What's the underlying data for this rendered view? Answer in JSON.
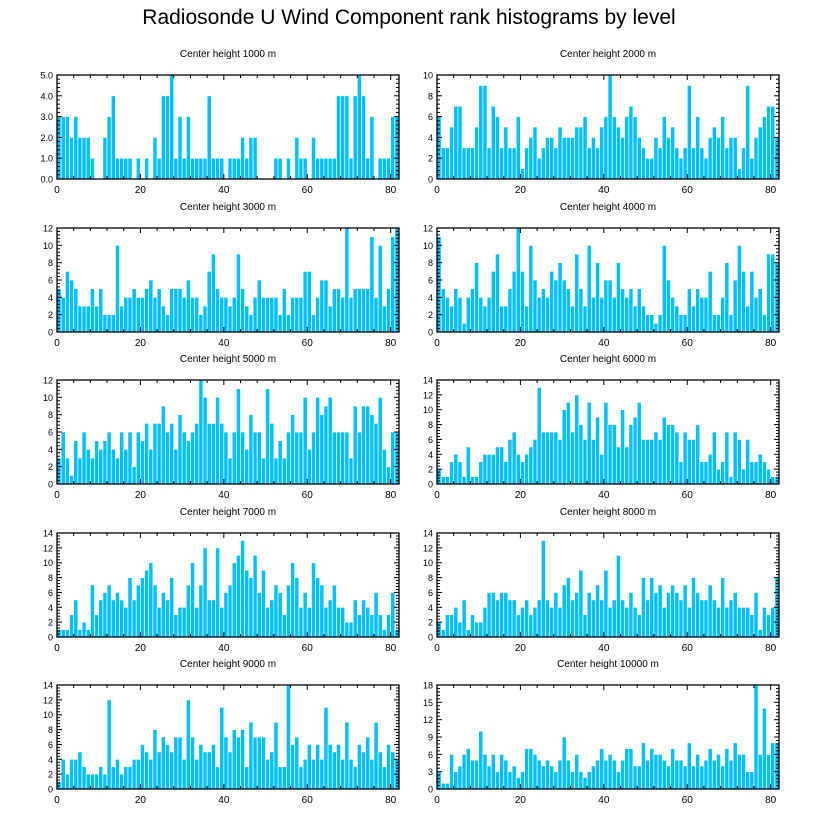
{
  "title": "Radiosonde U Wind Component rank histograms by level",
  "bar_color": "#00BFFF",
  "frame_color": "#000000",
  "chart_data": [
    {
      "type": "bar",
      "title": "Center height 1000 m",
      "xlim": [
        0,
        82
      ],
      "xticks": [
        0,
        20,
        40,
        60,
        80
      ],
      "ylim": [
        0,
        5
      ],
      "yticks": [
        0,
        1,
        2,
        3,
        4,
        5
      ],
      "ytick_labels": [
        "0.0",
        "1.0",
        "2.0",
        "3.0",
        "4.0",
        "5.0"
      ],
      "values": [
        3,
        3,
        3,
        2,
        3,
        2,
        2,
        2,
        1,
        0,
        0,
        2,
        3,
        4,
        1,
        1,
        1,
        1,
        0,
        1,
        0,
        1,
        0,
        2,
        1,
        4,
        4,
        5,
        1,
        3,
        1,
        3,
        1,
        1,
        1,
        1,
        4,
        1,
        1,
        1,
        0,
        1,
        1,
        1,
        2,
        1,
        2,
        2,
        0,
        0,
        0,
        0,
        1,
        1,
        0,
        1,
        0,
        2,
        1,
        1,
        0,
        2,
        1,
        1,
        1,
        1,
        1,
        4,
        4,
        4,
        1,
        4,
        5,
        4,
        1,
        3,
        0,
        1,
        1,
        1,
        3,
        3
      ]
    },
    {
      "type": "bar",
      "title": "Center height 2000 m",
      "xlim": [
        0,
        82
      ],
      "xticks": [
        0,
        20,
        40,
        60,
        80
      ],
      "ylim": [
        0,
        10
      ],
      "yticks": [
        0,
        2,
        4,
        6,
        8,
        10
      ],
      "ytick_labels": [
        "0",
        "2",
        "4",
        "6",
        "8",
        "10"
      ],
      "values": [
        6,
        3,
        3,
        5,
        7,
        7,
        3,
        3,
        3,
        5,
        9,
        9,
        3,
        7,
        6,
        3,
        5,
        3,
        3,
        6,
        1,
        3,
        4,
        5,
        2,
        3,
        4,
        4,
        3,
        5,
        4,
        4,
        4,
        5,
        5,
        6,
        3,
        4,
        3,
        5,
        6,
        10,
        6,
        5,
        4,
        6,
        7,
        6,
        4,
        3,
        2,
        2,
        4,
        3,
        6,
        4,
        5,
        3,
        2,
        3,
        9,
        3,
        6,
        3,
        2,
        4,
        5,
        4,
        6,
        3,
        4,
        4,
        1,
        3,
        9,
        2,
        4,
        5,
        6,
        7,
        7,
        4
      ]
    },
    {
      "type": "bar",
      "title": "Center height 3000 m",
      "xlim": [
        0,
        82
      ],
      "xticks": [
        0,
        20,
        40,
        60,
        80
      ],
      "ylim": [
        0,
        12
      ],
      "yticks": [
        0,
        2,
        4,
        6,
        8,
        10,
        12
      ],
      "ytick_labels": [
        "0",
        "2",
        "4",
        "6",
        "8",
        "10",
        "12"
      ],
      "values": [
        5,
        4,
        7,
        6,
        5,
        3,
        3,
        3,
        5,
        3,
        5,
        2,
        2,
        2,
        10,
        3,
        4,
        4,
        5,
        4,
        4,
        5,
        6,
        4,
        5,
        3,
        2,
        5,
        5,
        5,
        4,
        6,
        4,
        4,
        2,
        3,
        7,
        9,
        5,
        4,
        4,
        3,
        4,
        9,
        5,
        3,
        2,
        4,
        6,
        4,
        4,
        4,
        4,
        2,
        5,
        2,
        4,
        4,
        4,
        7,
        7,
        2,
        4,
        6,
        6,
        3,
        5,
        5,
        4,
        12,
        4,
        5,
        5,
        5,
        5,
        11,
        4,
        10,
        3,
        5,
        11,
        12
      ]
    },
    {
      "type": "bar",
      "title": "Center height 4000 m",
      "xlim": [
        0,
        82
      ],
      "xticks": [
        0,
        20,
        40,
        60,
        80
      ],
      "ylim": [
        0,
        12
      ],
      "yticks": [
        0,
        2,
        4,
        6,
        8,
        10,
        12
      ],
      "ytick_labels": [
        "0",
        "2",
        "4",
        "6",
        "8",
        "10",
        "12"
      ],
      "values": [
        11,
        5,
        4,
        3,
        5,
        4,
        1,
        4,
        5,
        8,
        4,
        3,
        4,
        7,
        9,
        3,
        3,
        5,
        7,
        12,
        7,
        3,
        10,
        6,
        4,
        5,
        4,
        7,
        6,
        8,
        6,
        5,
        3,
        9,
        5,
        3,
        10,
        4,
        8,
        4,
        6,
        6,
        4,
        8,
        5,
        4,
        5,
        3,
        5,
        3,
        2,
        2,
        1,
        2,
        10,
        6,
        4,
        3,
        2,
        2,
        5,
        3,
        5,
        4,
        4,
        7,
        2,
        2,
        4,
        8,
        2,
        6,
        10,
        7,
        3,
        7,
        4,
        5,
        2,
        9,
        9,
        8
      ]
    },
    {
      "type": "bar",
      "title": "Center height 5000 m",
      "xlim": [
        0,
        82
      ],
      "xticks": [
        0,
        20,
        40,
        60,
        80
      ],
      "ylim": [
        0,
        12
      ],
      "yticks": [
        0,
        2,
        4,
        6,
        8,
        10,
        12
      ],
      "ytick_labels": [
        "0",
        "2",
        "4",
        "6",
        "8",
        "10",
        "12"
      ],
      "values": [
        3,
        6,
        3,
        1,
        5,
        3,
        6,
        4,
        3,
        5,
        4,
        5,
        6,
        4,
        3,
        6,
        4,
        6,
        2,
        6,
        5,
        7,
        4,
        7,
        7,
        9,
        6,
        7,
        4,
        8,
        6,
        5,
        6,
        7,
        12,
        10,
        7,
        7,
        10,
        7,
        6,
        3,
        6,
        11,
        6,
        4,
        8,
        6,
        6,
        3,
        11,
        7,
        3,
        5,
        3,
        6,
        8,
        6,
        6,
        10,
        4,
        6,
        10,
        8,
        9,
        10,
        6,
        6,
        6,
        6,
        3,
        9,
        6,
        9,
        9,
        8,
        7,
        10,
        4,
        2,
        6,
        6
      ]
    },
    {
      "type": "bar",
      "title": "Center height 6000 m",
      "xlim": [
        0,
        82
      ],
      "xticks": [
        0,
        20,
        40,
        60,
        80
      ],
      "ylim": [
        0,
        14
      ],
      "yticks": [
        0,
        2,
        4,
        6,
        8,
        10,
        12,
        14
      ],
      "ytick_labels": [
        "0",
        "2",
        "4",
        "6",
        "8",
        "10",
        "12",
        "14"
      ],
      "values": [
        2,
        1,
        1,
        3,
        4,
        3,
        1,
        5,
        1,
        1,
        3,
        4,
        4,
        4,
        5,
        5,
        3,
        6,
        7,
        4,
        3,
        4,
        5,
        6,
        13,
        7,
        7,
        7,
        7,
        6,
        10,
        11,
        7,
        12,
        8,
        6,
        11,
        6,
        9,
        4,
        11,
        8,
        8,
        5,
        10,
        5,
        8,
        9,
        11,
        6,
        6,
        6,
        7,
        6,
        9,
        8,
        8,
        7,
        3,
        7,
        6,
        6,
        8,
        3,
        3,
        4,
        7,
        2,
        3,
        7,
        1,
        7,
        6,
        2,
        6,
        3,
        3,
        4,
        3,
        2,
        1,
        1
      ]
    },
    {
      "type": "bar",
      "title": "Center height 7000 m",
      "xlim": [
        0,
        82
      ],
      "xticks": [
        0,
        20,
        40,
        60,
        80
      ],
      "ylim": [
        0,
        14
      ],
      "yticks": [
        0,
        2,
        4,
        6,
        8,
        10,
        12,
        14
      ],
      "ytick_labels": [
        "0",
        "2",
        "4",
        "6",
        "8",
        "10",
        "12",
        "14"
      ],
      "values": [
        1,
        1,
        1,
        3,
        5,
        1,
        2,
        1,
        7,
        3,
        5,
        6,
        7,
        5,
        6,
        5,
        4,
        8,
        5,
        7,
        8,
        9,
        10,
        7,
        4,
        6,
        5,
        8,
        3,
        4,
        4,
        7,
        10,
        4,
        7,
        12,
        5,
        5,
        12,
        4,
        6,
        7,
        10,
        11,
        13,
        9,
        8,
        11,
        6,
        9,
        4,
        5,
        7,
        6,
        3,
        7,
        10,
        8,
        4,
        6,
        4,
        10,
        8,
        7,
        4,
        5,
        7,
        4,
        4,
        2,
        2,
        5,
        3,
        5,
        4,
        3,
        6,
        3,
        1,
        3,
        6,
        1
      ]
    },
    {
      "type": "bar",
      "title": "Center height 8000 m",
      "xlim": [
        0,
        82
      ],
      "xticks": [
        0,
        20,
        40,
        60,
        80
      ],
      "ylim": [
        0,
        14
      ],
      "yticks": [
        0,
        2,
        4,
        6,
        8,
        10,
        12,
        14
      ],
      "ytick_labels": [
        "0",
        "2",
        "4",
        "6",
        "8",
        "10",
        "12",
        "14"
      ],
      "values": [
        2,
        1,
        3,
        3,
        4,
        2,
        5,
        1,
        3,
        2,
        2,
        4,
        6,
        6,
        5,
        6,
        6,
        5,
        5,
        3,
        4,
        5,
        3,
        4,
        5,
        13,
        5,
        4,
        6,
        4,
        7,
        8,
        5,
        6,
        9,
        3,
        6,
        5,
        7,
        5,
        9,
        4,
        5,
        11,
        5,
        4,
        6,
        4,
        3,
        8,
        5,
        8,
        6,
        7,
        4,
        6,
        7,
        6,
        5,
        7,
        4,
        8,
        6,
        5,
        5,
        7,
        5,
        4,
        8,
        4,
        5,
        6,
        4,
        4,
        4,
        3,
        6,
        1,
        4,
        3,
        4,
        8
      ]
    },
    {
      "type": "bar",
      "title": "Center height 9000 m",
      "xlim": [
        0,
        82
      ],
      "xticks": [
        0,
        20,
        40,
        60,
        80
      ],
      "ylim": [
        0,
        14
      ],
      "yticks": [
        0,
        2,
        4,
        6,
        8,
        10,
        12,
        14
      ],
      "ytick_labels": [
        "0",
        "2",
        "4",
        "6",
        "8",
        "10",
        "12",
        "14"
      ],
      "values": [
        1,
        4,
        2,
        4,
        4,
        5,
        3,
        2,
        2,
        2,
        3,
        2,
        12,
        3,
        4,
        2,
        3,
        3,
        4,
        4,
        6,
        5,
        4,
        8,
        5,
        7,
        6,
        5,
        7,
        7,
        4,
        12,
        7,
        4,
        6,
        5,
        5,
        6,
        3,
        11,
        7,
        5,
        8,
        7,
        8,
        3,
        9,
        7,
        7,
        7,
        4,
        5,
        9,
        3,
        3,
        14,
        6,
        7,
        3,
        4,
        6,
        4,
        6,
        4,
        11,
        6,
        5,
        6,
        4,
        9,
        4,
        3,
        6,
        5,
        7,
        4,
        9,
        5,
        3,
        6,
        5,
        4
      ]
    },
    {
      "type": "bar",
      "title": "Center height 10000 m",
      "xlim": [
        0,
        82
      ],
      "xticks": [
        0,
        20,
        40,
        60,
        80
      ],
      "ylim": [
        0,
        18
      ],
      "yticks": [
        0,
        3,
        6,
        9,
        12,
        15,
        18
      ],
      "ytick_labels": [
        "0",
        "3",
        "6",
        "9",
        "12",
        "15",
        "18"
      ],
      "values": [
        3,
        1,
        1,
        6,
        3,
        4,
        6,
        7,
        5,
        5,
        10,
        6,
        4,
        6,
        3,
        6,
        5,
        3,
        4,
        2,
        3,
        7,
        7,
        6,
        5,
        4,
        5,
        4,
        3,
        5,
        9,
        5,
        3,
        6,
        3,
        2,
        3,
        4,
        5,
        7,
        5,
        6,
        5,
        3,
        5,
        7,
        7,
        4,
        4,
        8,
        5,
        7,
        6,
        6,
        5,
        4,
        7,
        5,
        5,
        4,
        8,
        4,
        6,
        4,
        5,
        7,
        5,
        6,
        4,
        7,
        5,
        8,
        6,
        6,
        3,
        3,
        18,
        6,
        14,
        6,
        8,
        8
      ]
    }
  ]
}
